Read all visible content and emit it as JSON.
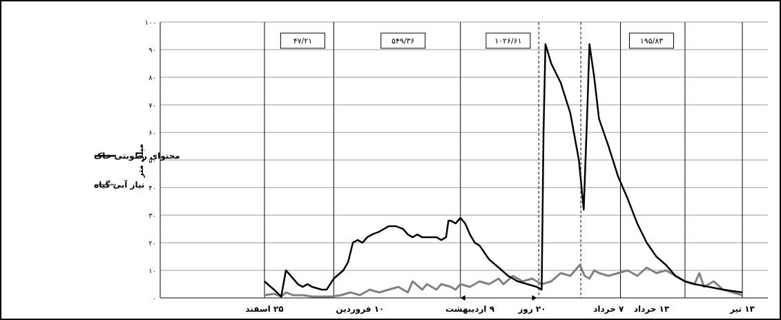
{
  "chart_data": {
    "type": "line",
    "ylabel": "میلی متر",
    "ylim": [
      0,
      100
    ],
    "yticks": [
      "۰",
      "۱۰",
      "۲۰",
      "۳۰",
      "۴۰",
      "۵۰",
      "۶۰",
      "۷۰",
      "۸۰",
      "۹۰",
      "۱۰۰"
    ],
    "x_labels": [
      {
        "t": 0.0,
        "text": "۲۵ اسفند"
      },
      {
        "t": 0.2,
        "text": "۱۰ فروردین"
      },
      {
        "t": 0.43,
        "text": "۹ اردیبهشت"
      },
      {
        "t": 0.56,
        "text": "۲۰ روز"
      },
      {
        "t": 0.72,
        "text": "۷ خرداد"
      },
      {
        "t": 0.81,
        "text": "۱۳ خرداد"
      },
      {
        "t": 1.0,
        "text": "۱۳ تیر"
      }
    ],
    "period_boundaries": [
      0.0,
      0.145,
      0.41,
      0.745,
      0.88,
      1.0
    ],
    "dashed_lines": [
      0.574,
      0.662
    ],
    "period_labels": [
      "۴۷/۲۱",
      "۵۴۹/۳۶",
      "۱۰۲۶/۶۱",
      "۱۹۵/۸۳"
    ],
    "period_label_centers": [
      0.08,
      0.29,
      0.51,
      0.81
    ],
    "arrow_span": [
      0.41,
      0.57
    ],
    "series": [
      {
        "name": "محتوای رطوبتی خاک",
        "color": "#000000",
        "points": [
          [
            0.0,
            6
          ],
          [
            0.02,
            3
          ],
          [
            0.035,
            0.5
          ],
          [
            0.045,
            10
          ],
          [
            0.055,
            8
          ],
          [
            0.07,
            5
          ],
          [
            0.08,
            4
          ],
          [
            0.09,
            5
          ],
          [
            0.1,
            4
          ],
          [
            0.12,
            3
          ],
          [
            0.13,
            3
          ],
          [
            0.145,
            7
          ],
          [
            0.165,
            10
          ],
          [
            0.175,
            13
          ],
          [
            0.185,
            20
          ],
          [
            0.195,
            21
          ],
          [
            0.205,
            20
          ],
          [
            0.215,
            22
          ],
          [
            0.225,
            23
          ],
          [
            0.24,
            24
          ],
          [
            0.26,
            26
          ],
          [
            0.275,
            26
          ],
          [
            0.29,
            25
          ],
          [
            0.3,
            23
          ],
          [
            0.31,
            22
          ],
          [
            0.32,
            23
          ],
          [
            0.33,
            22
          ],
          [
            0.345,
            22
          ],
          [
            0.36,
            22
          ],
          [
            0.37,
            21
          ],
          [
            0.38,
            22
          ],
          [
            0.385,
            28
          ],
          [
            0.39,
            28
          ],
          [
            0.4,
            27
          ],
          [
            0.41,
            29
          ],
          [
            0.42,
            27
          ],
          [
            0.43,
            23
          ],
          [
            0.44,
            20
          ],
          [
            0.45,
            19
          ],
          [
            0.47,
            14
          ],
          [
            0.49,
            11
          ],
          [
            0.51,
            8
          ],
          [
            0.53,
            6
          ],
          [
            0.55,
            5
          ],
          [
            0.57,
            4
          ],
          [
            0.58,
            3
          ],
          [
            0.584,
            60
          ],
          [
            0.588,
            92
          ],
          [
            0.6,
            85
          ],
          [
            0.62,
            78
          ],
          [
            0.64,
            67
          ],
          [
            0.658,
            50
          ],
          [
            0.668,
            32
          ],
          [
            0.675,
            65
          ],
          [
            0.68,
            92
          ],
          [
            0.69,
            80
          ],
          [
            0.7,
            65
          ],
          [
            0.72,
            55
          ],
          [
            0.74,
            44
          ],
          [
            0.76,
            36
          ],
          [
            0.78,
            27
          ],
          [
            0.8,
            20
          ],
          [
            0.82,
            15
          ],
          [
            0.84,
            12
          ],
          [
            0.86,
            8
          ],
          [
            0.88,
            6
          ],
          [
            0.9,
            5
          ],
          [
            0.93,
            4
          ],
          [
            0.96,
            3
          ],
          [
            1.0,
            2
          ]
        ]
      },
      {
        "name": "نیاز آبی گیاه",
        "color": "#808080",
        "points": [
          [
            0.0,
            1
          ],
          [
            0.02,
            1.5
          ],
          [
            0.035,
            0.5
          ],
          [
            0.045,
            2
          ],
          [
            0.06,
            1
          ],
          [
            0.08,
            1
          ],
          [
            0.1,
            0.5
          ],
          [
            0.12,
            0.5
          ],
          [
            0.14,
            0.5
          ],
          [
            0.16,
            1
          ],
          [
            0.18,
            2
          ],
          [
            0.2,
            1
          ],
          [
            0.22,
            3
          ],
          [
            0.24,
            2
          ],
          [
            0.26,
            3
          ],
          [
            0.28,
            4
          ],
          [
            0.3,
            2
          ],
          [
            0.31,
            6
          ],
          [
            0.33,
            3
          ],
          [
            0.34,
            5
          ],
          [
            0.36,
            3
          ],
          [
            0.37,
            5
          ],
          [
            0.39,
            4
          ],
          [
            0.4,
            3
          ],
          [
            0.41,
            5
          ],
          [
            0.43,
            4
          ],
          [
            0.45,
            6
          ],
          [
            0.47,
            5
          ],
          [
            0.49,
            7
          ],
          [
            0.5,
            5
          ],
          [
            0.52,
            8
          ],
          [
            0.54,
            6
          ],
          [
            0.56,
            7
          ],
          [
            0.58,
            5
          ],
          [
            0.6,
            6
          ],
          [
            0.62,
            9
          ],
          [
            0.64,
            8
          ],
          [
            0.66,
            12
          ],
          [
            0.67,
            8
          ],
          [
            0.68,
            7
          ],
          [
            0.69,
            10
          ],
          [
            0.7,
            9
          ],
          [
            0.72,
            8
          ],
          [
            0.74,
            9
          ],
          [
            0.76,
            10
          ],
          [
            0.78,
            8
          ],
          [
            0.8,
            11
          ],
          [
            0.82,
            9
          ],
          [
            0.84,
            10
          ],
          [
            0.86,
            8
          ],
          [
            0.88,
            6
          ],
          [
            0.9,
            5
          ],
          [
            0.91,
            9
          ],
          [
            0.92,
            4
          ],
          [
            0.94,
            6
          ],
          [
            0.96,
            3
          ],
          [
            0.98,
            2
          ],
          [
            1.0,
            1
          ]
        ]
      }
    ]
  }
}
